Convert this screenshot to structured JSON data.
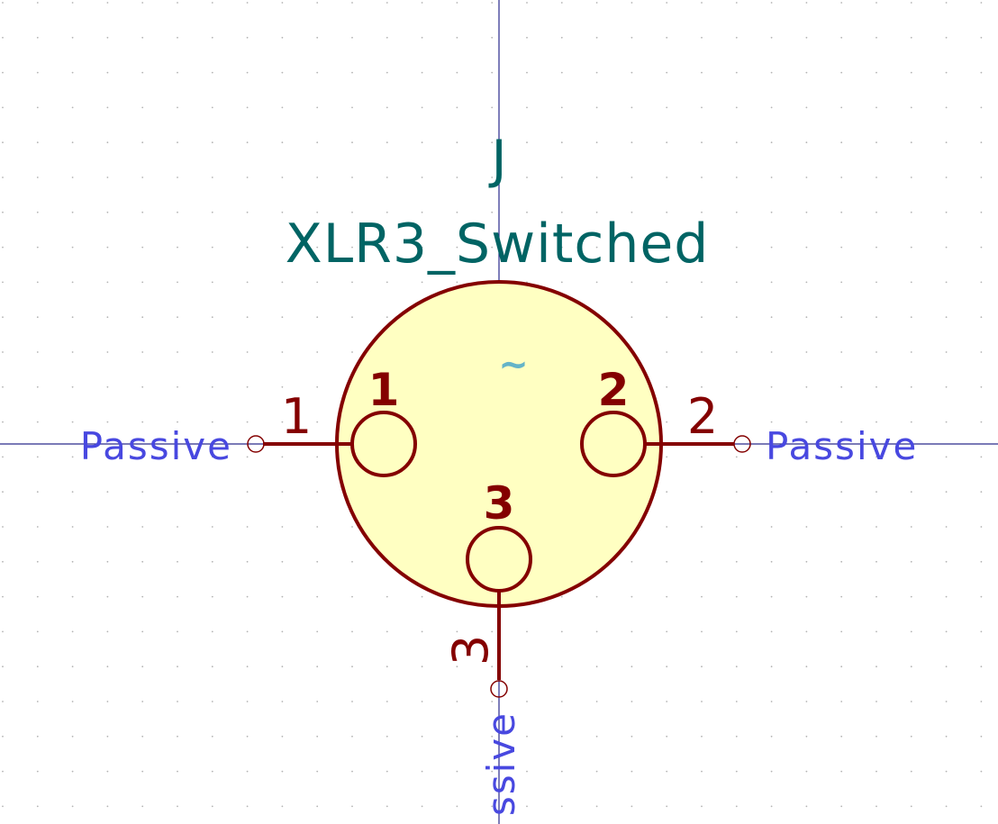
{
  "symbol": {
    "reference": "J",
    "value": "XLR3_Switched",
    "shield_marker": "~",
    "colors": {
      "body_fill": "#ffffc2",
      "outline": "#840000",
      "field_text": "#006464",
      "electrical_type": "#4848e0",
      "axis": "#2a2a8c"
    }
  },
  "pins": [
    {
      "number": "1",
      "inner_label": "1",
      "electrical_type": "Passive",
      "direction": "left"
    },
    {
      "number": "2",
      "inner_label": "2",
      "electrical_type": "Passive",
      "direction": "right"
    },
    {
      "number": "3",
      "inner_label": "3",
      "electrical_type": "ssive",
      "direction": "down"
    }
  ]
}
